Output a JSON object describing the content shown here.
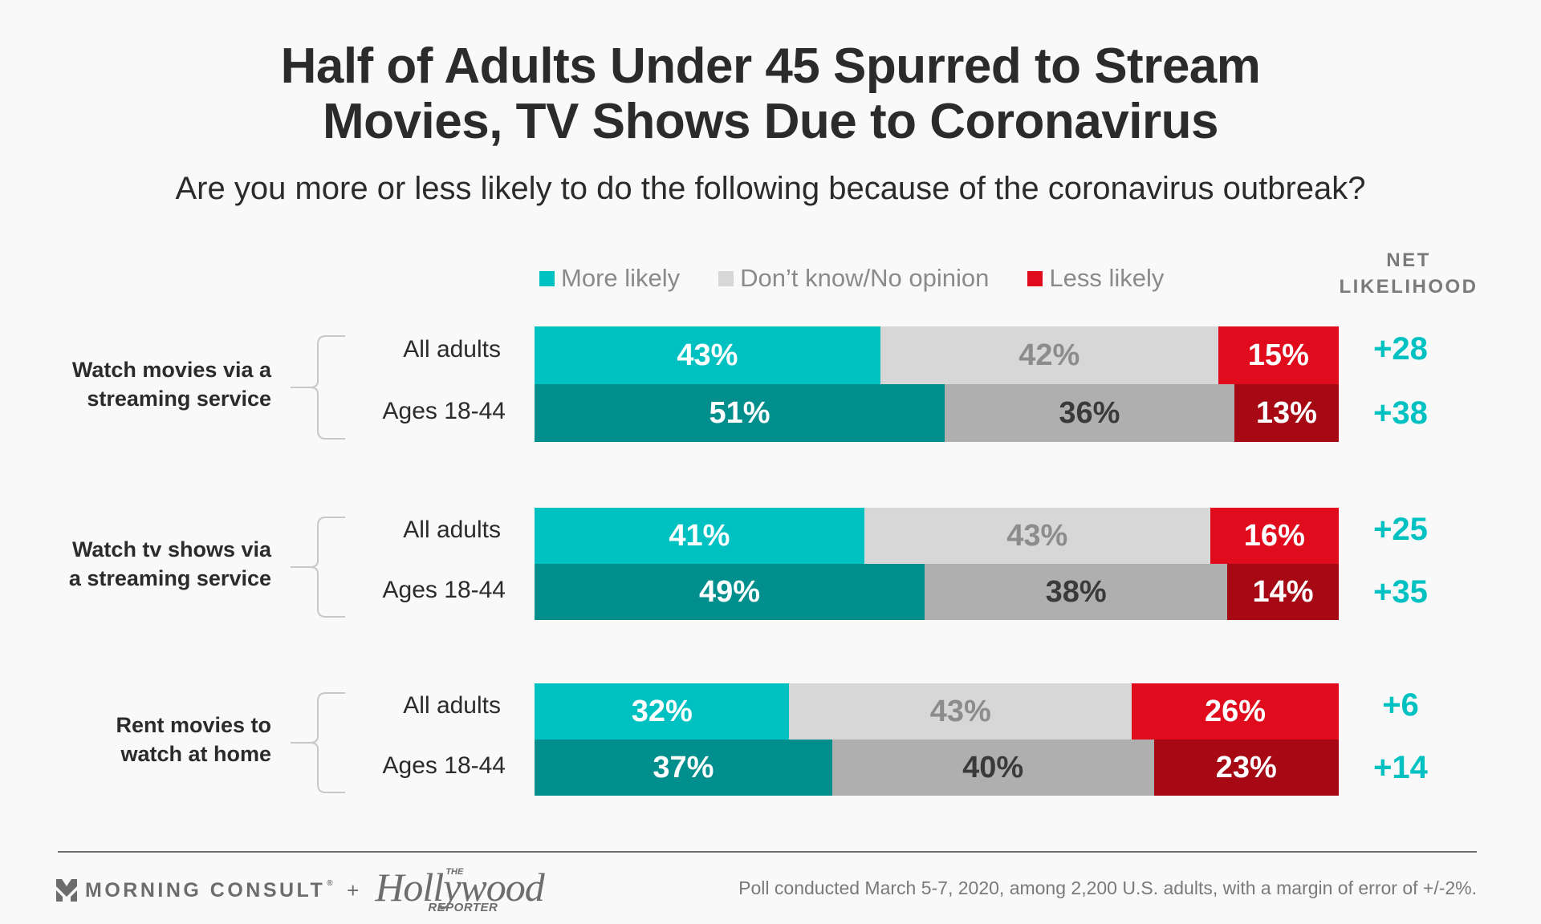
{
  "chart_data": {
    "type": "bar",
    "orientation": "horizontal",
    "stacked": "100%",
    "title": "Half of Adults Under 45 Spurred to Stream Movies, TV Shows Due to Coronavirus",
    "title_lines": [
      "Half of Adults Under 45 Spurred to Stream",
      "Movies, TV Shows Due to Coronavirus"
    ],
    "subtitle": "Are you more or less likely to do the following because of the coronavirus outbreak?",
    "legend": [
      {
        "name": "More likely",
        "color": "#00c1c1"
      },
      {
        "name": "Don’t know/No opinion",
        "color": "#d7d7d7"
      },
      {
        "name": "Less likely",
        "color": "#e00b1c"
      }
    ],
    "legend_position": "top",
    "net_header": [
      "NET",
      "LIKELIHOOD"
    ],
    "groups": [
      {
        "label": [
          "Watch movies via a",
          "streaming service"
        ],
        "rows": [
          {
            "label": "All adults",
            "more": 43,
            "dont_know": 42,
            "less": 15,
            "net": "+28"
          },
          {
            "label": "Ages 18-44",
            "more": 51,
            "dont_know": 36,
            "less": 13,
            "net": "+38"
          }
        ]
      },
      {
        "label": [
          "Watch tv shows via",
          "a streaming service"
        ],
        "rows": [
          {
            "label": "All adults",
            "more": 41,
            "dont_know": 43,
            "less": 16,
            "net": "+25"
          },
          {
            "label": "Ages 18-44",
            "more": 49,
            "dont_know": 38,
            "less": 14,
            "net": "+35"
          }
        ]
      },
      {
        "label": [
          "Rent movies to",
          "watch at home"
        ],
        "rows": [
          {
            "label": "All adults",
            "more": 32,
            "dont_know": 43,
            "less": 26,
            "net": "+6"
          },
          {
            "label": "Ages 18-44",
            "more": 37,
            "dont_know": 40,
            "less": 23,
            "net": "+14"
          }
        ]
      }
    ],
    "xlim": [
      0,
      100
    ],
    "grid": false
  },
  "colors": {
    "all_adults": {
      "more": "#00c1c1",
      "dont_know": "#d7d7d7",
      "less": "#e00b1c",
      "dont_know_text": "#8c8c8c"
    },
    "ages_18_44": {
      "more": "#008f8c",
      "dont_know": "#afafaf",
      "less": "#a60814",
      "dont_know_text": "#3a3a3a"
    },
    "net": "#00c1c1"
  },
  "footer": {
    "brand1": "MORNING CONSULT",
    "brand1_mark": "®",
    "plus": "+",
    "brand2_main": "Hollywood",
    "brand2_the": "THE",
    "brand2_sub": "REPORTER",
    "note": "Poll conducted March 5-7, 2020, among 2,200 U.S. adults, with a margin of error of +/-2%."
  }
}
